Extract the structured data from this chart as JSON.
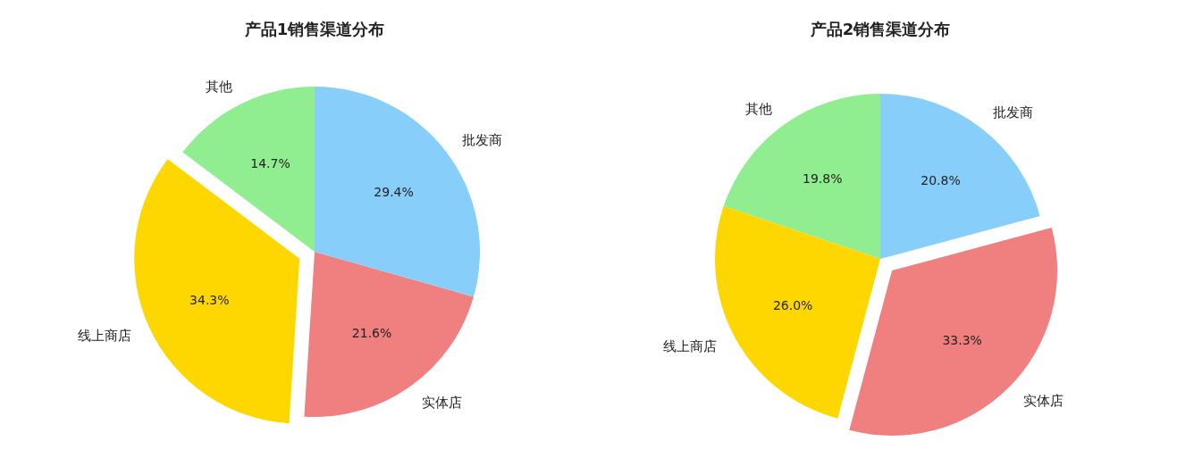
{
  "chart_data": [
    {
      "type": "pie",
      "title": "产品1销售渠道分布",
      "categories": [
        "其他",
        "线上商店",
        "实体店",
        "批发商"
      ],
      "values": [
        14.7,
        34.3,
        21.6,
        29.4
      ],
      "colors": [
        "#90ee90",
        "#ffd700",
        "#f08080",
        "#87cefa"
      ],
      "value_labels": [
        "14.7%",
        "34.3%",
        "21.6%",
        "29.4%"
      ]
    },
    {
      "type": "pie",
      "title": "产品2销售渠道分布",
      "categories": [
        "其他",
        "线上商店",
        "实体店",
        "批发商"
      ],
      "values": [
        19.8,
        26.0,
        33.3,
        20.8
      ],
      "colors": [
        "#90ee90",
        "#ffd700",
        "#f08080",
        "#87cefa"
      ],
      "value_labels": [
        "19.8%",
        "26.0%",
        "33.3%",
        "20.8%"
      ]
    }
  ]
}
